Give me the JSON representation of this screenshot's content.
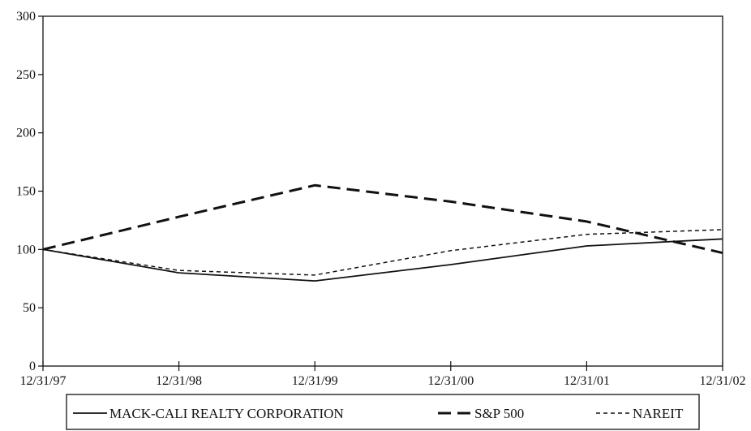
{
  "chart_data": {
    "type": "line",
    "title": "",
    "xlabel": "",
    "ylabel": "",
    "x": [
      "12/31/97",
      "12/31/98",
      "12/31/99",
      "12/31/00",
      "12/31/01",
      "12/31/02"
    ],
    "yticks": [
      0,
      50,
      100,
      150,
      200,
      250,
      300
    ],
    "ylim": [
      0,
      300
    ],
    "grid": false,
    "legend": "bottom",
    "series": [
      {
        "name": "MACK-CALI REALTY CORPORATION",
        "style": "solid",
        "color": "#111111",
        "values": [
          100,
          80,
          73,
          87,
          103,
          109
        ]
      },
      {
        "name": "S&P 500",
        "style": "long-dash",
        "color": "#111111",
        "values": [
          100,
          128,
          155,
          141,
          124,
          97
        ]
      },
      {
        "name": "NAREIT",
        "style": "short-dash",
        "color": "#111111",
        "values": [
          100,
          82,
          78,
          99,
          113,
          117
        ]
      }
    ]
  }
}
